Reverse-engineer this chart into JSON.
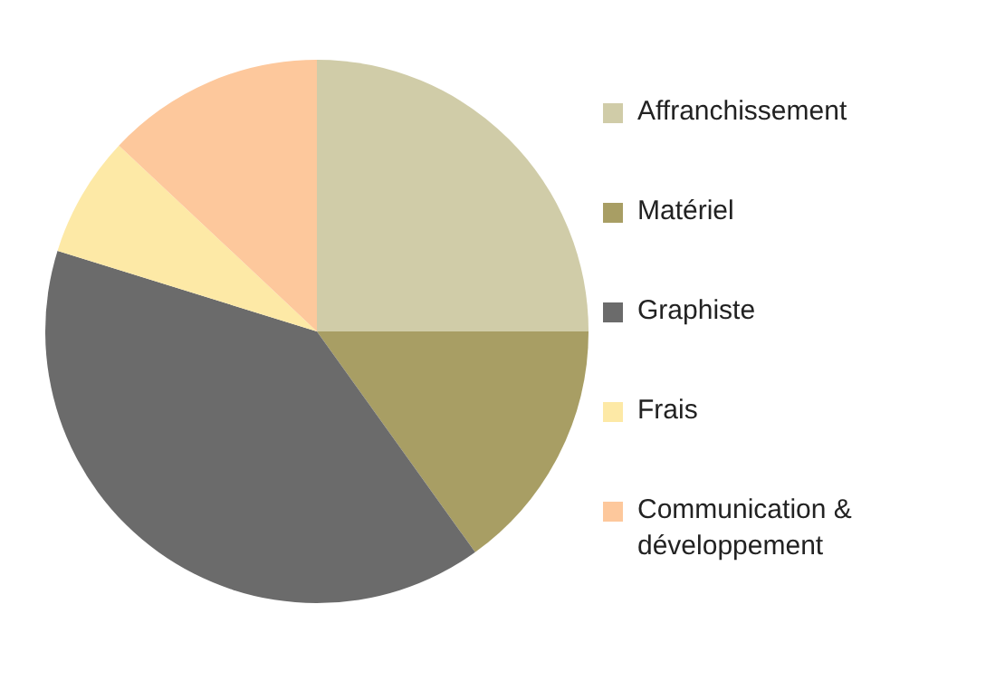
{
  "chart_data": {
    "type": "pie",
    "categories": [
      "Affranchissement",
      "Matériel",
      "Graphiste",
      "Frais",
      "Communication & développement"
    ],
    "values": [
      25,
      15.1,
      39.7,
      7.2,
      13
    ],
    "colors": [
      "#d0cca8",
      "#a89e64",
      "#6b6b6b",
      "#fde9a6",
      "#fdc89c"
    ],
    "legend": "right"
  }
}
